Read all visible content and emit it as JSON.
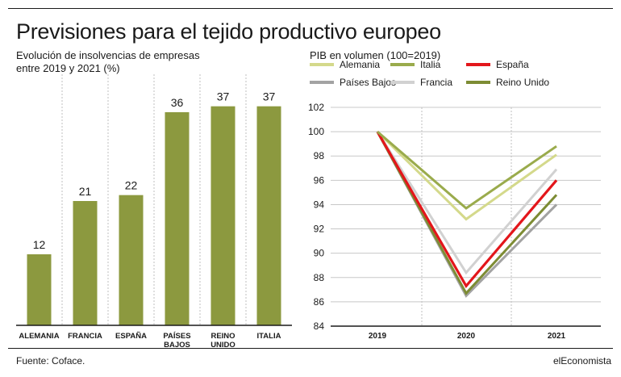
{
  "header": {
    "title": "Previsiones para el tejido productivo europeo"
  },
  "footer": {
    "source": "Fuente: Coface.",
    "brand": "elEconomista"
  },
  "colors": {
    "bar": "#8c993f",
    "grid": "#bfbfbf",
    "axis": "#1a1a1a"
  },
  "chart_data": [
    {
      "type": "bar",
      "subtitle": [
        "Evolución de insolvencias de empresas",
        "entre 2019 y 2021 (%)"
      ],
      "categories": [
        [
          "ALEMANIA"
        ],
        [
          "FRANCIA"
        ],
        [
          "ESPAÑA"
        ],
        [
          "PAÍSES",
          "BAJOS"
        ],
        [
          "REINO",
          "UNIDO"
        ],
        [
          "ITALIA"
        ]
      ],
      "values": [
        12,
        21,
        22,
        36,
        37,
        37
      ],
      "ylim": [
        0,
        45
      ]
    },
    {
      "type": "line",
      "subtitle": "PIB en volumen (100=2019)",
      "x": [
        "2019",
        "2020",
        "2021"
      ],
      "ylim": [
        84,
        102
      ],
      "yticks": [
        84,
        86,
        88,
        90,
        92,
        94,
        96,
        98,
        100,
        102
      ],
      "series": [
        {
          "name": "Alemania",
          "color": "#d4d98b",
          "values": [
            100,
            92.8,
            98.1
          ]
        },
        {
          "name": "Italia",
          "color": "#9aab4c",
          "values": [
            100,
            93.7,
            98.8
          ]
        },
        {
          "name": "España",
          "color": "#e3161b",
          "values": [
            100,
            87.3,
            96.0
          ]
        },
        {
          "name": "Países Bajos",
          "color": "#a3a3a3",
          "values": [
            100,
            86.5,
            94.0
          ]
        },
        {
          "name": "Francia",
          "color": "#d1d1d1",
          "values": [
            100,
            88.4,
            96.9
          ]
        },
        {
          "name": "Reino Unido",
          "color": "#7d8c34",
          "values": [
            100,
            86.7,
            94.8
          ]
        }
      ]
    }
  ]
}
